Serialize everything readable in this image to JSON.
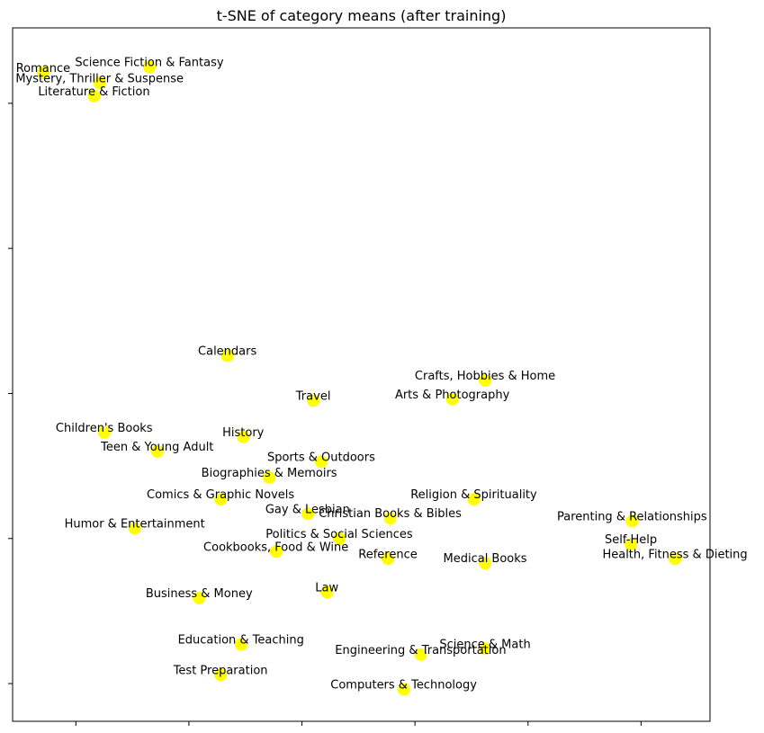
{
  "chart_data": {
    "type": "scatter",
    "title": "t-SNE of category means (after training)",
    "xlabel": "",
    "ylabel": "",
    "xlim": [
      -0.56,
      5.61
    ],
    "ylim": [
      -4.26,
      0.52
    ],
    "x_ticks": [
      0,
      1,
      2,
      3,
      4,
      5
    ],
    "y_ticks": [
      -4,
      -3,
      -2,
      -1,
      0
    ],
    "tick_labels_shown": false,
    "grid": false,
    "marker_color": "#ffff00",
    "points": [
      {
        "label": "Romance",
        "x": -0.29,
        "y": 0.21
      },
      {
        "label": "Science Fiction & Fantasy",
        "x": 0.65,
        "y": 0.25
      },
      {
        "label": "Mystery, Thriller & Suspense",
        "x": 0.21,
        "y": 0.14
      },
      {
        "label": "Literature & Fiction",
        "x": 0.16,
        "y": 0.05
      },
      {
        "label": "Calendars",
        "x": 1.34,
        "y": -1.74
      },
      {
        "label": "Crafts, Hobbies & Home",
        "x": 3.62,
        "y": -1.91
      },
      {
        "label": "Travel",
        "x": 2.1,
        "y": -2.05
      },
      {
        "label": "Arts & Photography",
        "x": 3.33,
        "y": -2.04
      },
      {
        "label": "Children's Books",
        "x": 0.25,
        "y": -2.27
      },
      {
        "label": "History",
        "x": 1.48,
        "y": -2.3
      },
      {
        "label": "Teen & Young Adult",
        "x": 0.72,
        "y": -2.4
      },
      {
        "label": "Sports & Outdoors",
        "x": 2.17,
        "y": -2.47
      },
      {
        "label": "Biographies & Memoirs",
        "x": 1.71,
        "y": -2.58
      },
      {
        "label": "Comics & Graphic Novels",
        "x": 1.28,
        "y": -2.73
      },
      {
        "label": "Religion & Spirituality",
        "x": 3.52,
        "y": -2.73
      },
      {
        "label": "Gay & Lesbian",
        "x": 2.05,
        "y": -2.83
      },
      {
        "label": "Christian Books & Bibles",
        "x": 2.78,
        "y": -2.86
      },
      {
        "label": "Parenting & Relationships",
        "x": 4.92,
        "y": -2.88
      },
      {
        "label": "Humor & Entertainment",
        "x": 0.52,
        "y": -2.93
      },
      {
        "label": "Politics & Social Sciences",
        "x": 2.33,
        "y": -3.0
      },
      {
        "label": "Self-Help",
        "x": 4.91,
        "y": -3.04
      },
      {
        "label": "Cookbooks, Food & Wine",
        "x": 1.77,
        "y": -3.09
      },
      {
        "label": "Reference",
        "x": 2.76,
        "y": -3.14
      },
      {
        "label": "Health, Fitness & Dieting",
        "x": 5.3,
        "y": -3.14
      },
      {
        "label": "Medical Books",
        "x": 3.62,
        "y": -3.17
      },
      {
        "label": "Law",
        "x": 2.22,
        "y": -3.37
      },
      {
        "label": "Business & Money",
        "x": 1.09,
        "y": -3.41
      },
      {
        "label": "Education & Teaching",
        "x": 1.46,
        "y": -3.73
      },
      {
        "label": "Science & Math",
        "x": 3.62,
        "y": -3.76
      },
      {
        "label": "Engineering & Transportation",
        "x": 3.05,
        "y": -3.8
      },
      {
        "label": "Test Preparation",
        "x": 1.28,
        "y": -3.94
      },
      {
        "label": "Computers & Technology",
        "x": 2.9,
        "y": -4.04
      }
    ]
  }
}
